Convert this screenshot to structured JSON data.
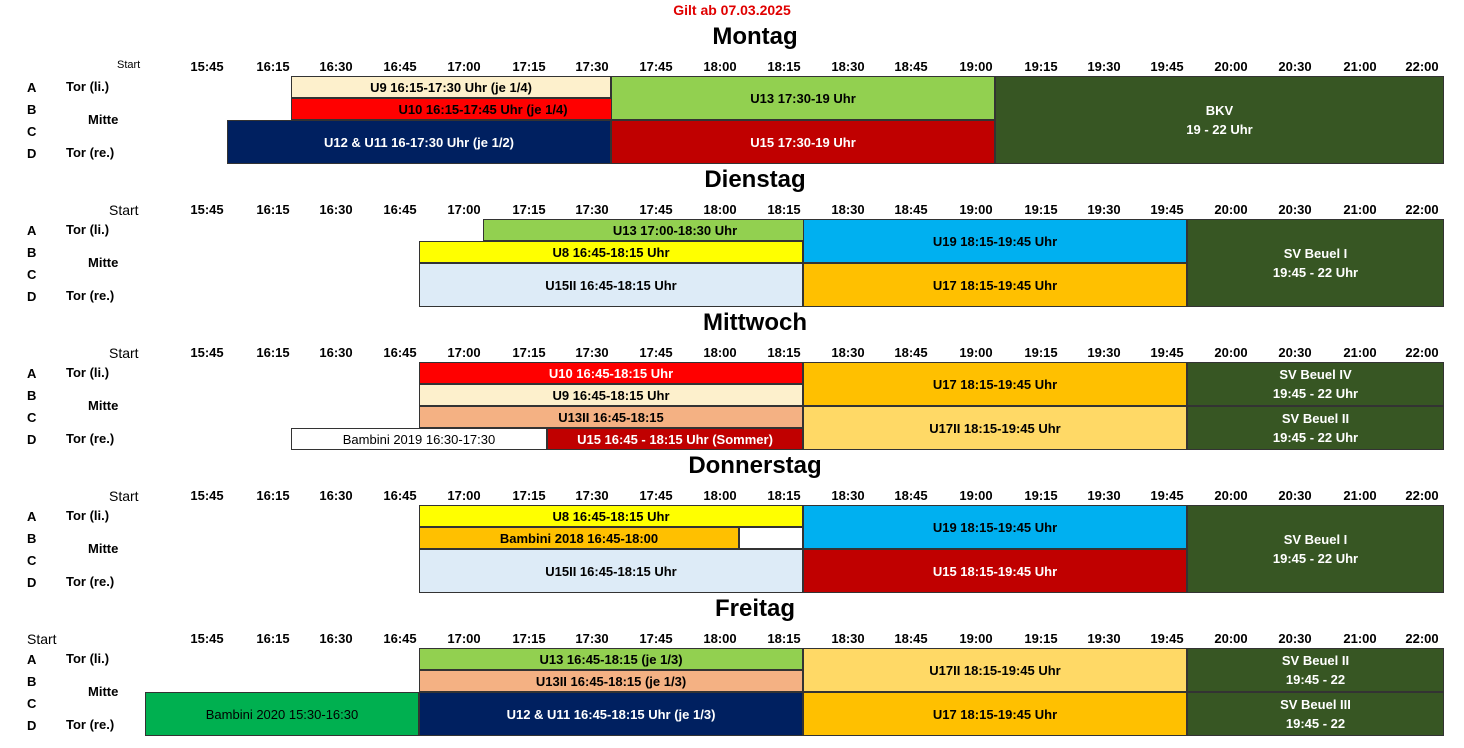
{
  "valid_from": "Gilt ab 07.03.2025",
  "times": [
    "15:45",
    "16:15",
    "16:30",
    "16:45",
    "17:00",
    "17:15",
    "17:30",
    "17:45",
    "18:00",
    "18:15",
    "18:30",
    "18:45",
    "19:00",
    "19:15",
    "19:30",
    "19:45",
    "20:00",
    "20:30",
    "21:00",
    "22:00"
  ],
  "rows": {
    "a": "A",
    "b": "B",
    "c": "C",
    "d": "D"
  },
  "sides": {
    "left": "Tor (li.)",
    "middle": "Mitte",
    "right": "Tor (re.)"
  },
  "start_label": "Start",
  "colors": {
    "light_yellow": "#fdf0cc",
    "red": "#ff0000",
    "dark_red": "#c00000",
    "navy": "#002060",
    "light_green": "#92d050",
    "dark_green": "#375623",
    "yellow": "#ffff00",
    "sky_blue": "#00b0f0",
    "pale_blue": "#ddebf7",
    "orange": "#ffc000",
    "salmon": "#f4b183",
    "light_orange": "#ffd966",
    "green": "#00b050",
    "white": "#ffffff",
    "title_red": "#e00000"
  },
  "days": [
    {
      "name": "Montag",
      "blocks": [
        {
          "text": "U9 16:15-17:30 Uhr (je 1/4)",
          "color": "light_yellow"
        },
        {
          "text": "U10 16:15-17:45 Uhr (je 1/4)",
          "color": "red"
        },
        {
          "text": "U12 & U11 16-17:30 Uhr (je 1/2)",
          "color": "navy"
        },
        {
          "text": "U13 17:30-19 Uhr",
          "color": "light_green"
        },
        {
          "text": "U15 17:30-19 Uhr",
          "color": "dark_red"
        },
        {
          "text": "BKV",
          "text2": "19 - 22 Uhr",
          "color": "dark_green"
        }
      ]
    },
    {
      "name": "Dienstag",
      "blocks": [
        {
          "text": "U13 17:00-18:30 Uhr",
          "color": "light_green"
        },
        {
          "text": "U8 16:45-18:15 Uhr",
          "color": "yellow"
        },
        {
          "text": "U15II 16:45-18:15 Uhr",
          "color": "pale_blue"
        },
        {
          "text": "U19 18:15-19:45 Uhr",
          "color": "sky_blue"
        },
        {
          "text": "U17 18:15-19:45 Uhr",
          "color": "orange"
        },
        {
          "text": "SV Beuel I",
          "text2": "19:45 - 22 Uhr",
          "color": "dark_green"
        }
      ]
    },
    {
      "name": "Mittwoch",
      "blocks": [
        {
          "text": "U10 16:45-18:15 Uhr",
          "color": "red"
        },
        {
          "text": "U9 16:45-18:15 Uhr",
          "color": "light_yellow"
        },
        {
          "text": "U13II 16:45-18:15",
          "color": "salmon"
        },
        {
          "text": "Bambini 2019 16:30-17:30",
          "color": "white"
        },
        {
          "text": "U15 16:45 - 18:15 Uhr (Sommer)",
          "color": "dark_red"
        },
        {
          "text": "U17 18:15-19:45 Uhr",
          "color": "orange"
        },
        {
          "text": "U17II 18:15-19:45 Uhr",
          "color": "light_orange"
        },
        {
          "text": "SV Beuel IV",
          "text2": "19:45 - 22 Uhr",
          "color": "dark_green"
        },
        {
          "text": "SV Beuel II",
          "text2": "19:45 - 22 Uhr",
          "color": "dark_green"
        }
      ]
    },
    {
      "name": "Donnerstag",
      "blocks": [
        {
          "text": "U8 16:45-18:15 Uhr",
          "color": "yellow"
        },
        {
          "text": "Bambini 2018 16:45-18:00",
          "color": "orange"
        },
        {
          "text": "",
          "color": "white"
        },
        {
          "text": "U15II 16:45-18:15 Uhr",
          "color": "pale_blue"
        },
        {
          "text": "U19 18:15-19:45 Uhr",
          "color": "sky_blue"
        },
        {
          "text": "U15 18:15-19:45 Uhr",
          "color": "dark_red"
        },
        {
          "text": "SV Beuel I",
          "text2": "19:45 - 22 Uhr",
          "color": "dark_green"
        }
      ]
    },
    {
      "name": "Freitag",
      "blocks": [
        {
          "text": "U13 16:45-18:15 (je 1/3)",
          "color": "light_green"
        },
        {
          "text": "U13II 16:45-18:15 (je 1/3)",
          "color": "salmon"
        },
        {
          "text": "Bambini 2020 15:30-16:30",
          "color": "green"
        },
        {
          "text": "U12 & U11 16:45-18:15 Uhr (je 1/3)",
          "color": "navy"
        },
        {
          "text": "U17II 18:15-19:45 Uhr",
          "color": "light_orange"
        },
        {
          "text": "U17 18:15-19:45 Uhr",
          "color": "orange"
        },
        {
          "text": "SV Beuel II",
          "text2": "19:45 - 22",
          "color": "dark_green"
        },
        {
          "text": "SV Beuel III",
          "text2": "19:45 - 22",
          "color": "dark_green"
        }
      ]
    }
  ]
}
